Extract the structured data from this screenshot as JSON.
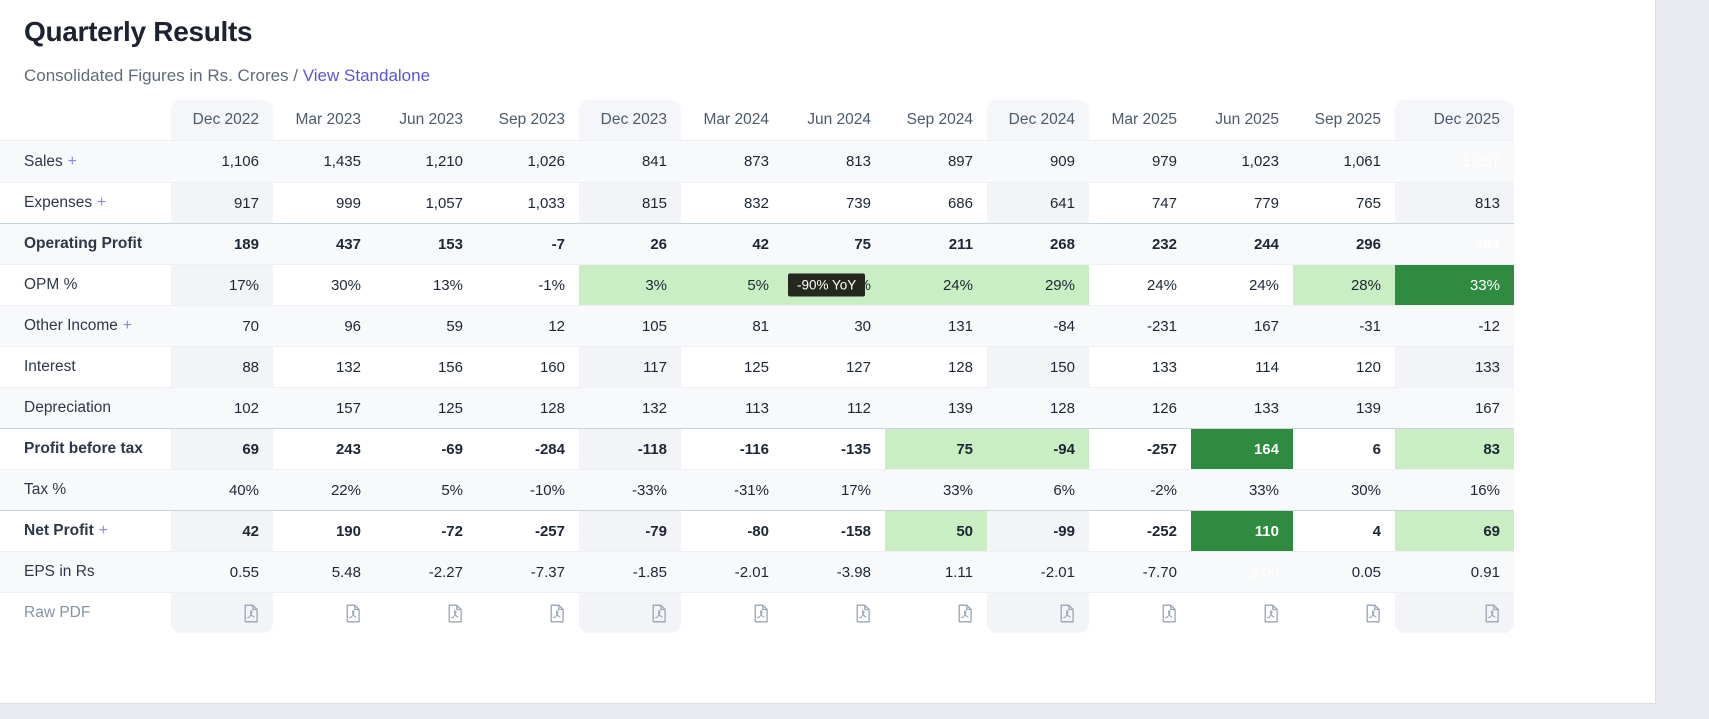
{
  "header": {
    "title": "Quarterly Results",
    "subtitle": "Consolidated Figures in Rs. Crores /",
    "link_label": "View Standalone"
  },
  "colors": {
    "highlight_light_green": "#c9eec3",
    "highlight_dark_green": "#2e8b3f",
    "dark_cell_text": "#ffffff",
    "link_purple": "#5b55d6",
    "expand_plus_purple": "#8b87e8",
    "tooltip_bg": "#24281f"
  },
  "tooltip": {
    "text": "-90% YoY",
    "row_index": 3,
    "col_index": 6
  },
  "table": {
    "expand_symbol": "+",
    "columns": [
      "Dec 2022",
      "Mar 2023",
      "Jun 2023",
      "Sep 2023",
      "Dec 2023",
      "Mar 2024",
      "Jun 2024",
      "Sep 2024",
      "Dec 2024",
      "Mar 2025",
      "Jun 2025",
      "Sep 2025",
      "Dec 2025"
    ],
    "striped_column_indices": [
      0,
      4,
      8,
      12
    ],
    "rows": [
      {
        "label": "Sales",
        "expandable": true,
        "bold": false,
        "values": [
          "1,106",
          "1,435",
          "1,210",
          "1,026",
          "841",
          "873",
          "813",
          "897",
          "909",
          "979",
          "1,023",
          "1,061",
          "1,207"
        ],
        "highlights": [
          null,
          null,
          null,
          null,
          null,
          null,
          null,
          null,
          "light",
          "light",
          "light",
          "light",
          "dark"
        ]
      },
      {
        "label": "Expenses",
        "expandable": true,
        "bold": false,
        "values": [
          "917",
          "999",
          "1,057",
          "1,033",
          "815",
          "832",
          "739",
          "686",
          "641",
          "747",
          "779",
          "765",
          "813"
        ],
        "highlights": [
          null,
          null,
          null,
          null,
          null,
          null,
          null,
          null,
          null,
          null,
          null,
          null,
          null
        ]
      },
      {
        "label": "Operating Profit",
        "bold": true,
        "values": [
          "189",
          "437",
          "153",
          "-7",
          "26",
          "42",
          "75",
          "211",
          "268",
          "232",
          "244",
          "296",
          "394"
        ],
        "highlights": [
          null,
          null,
          null,
          null,
          null,
          null,
          null,
          "light",
          "light",
          "light",
          "light",
          "light",
          "dark"
        ]
      },
      {
        "label": "OPM %",
        "bold": false,
        "values": [
          "17%",
          "30%",
          "13%",
          "-1%",
          "3%",
          "5%",
          "9%",
          "24%",
          "29%",
          "24%",
          "24%",
          "28%",
          "33%"
        ],
        "highlights": [
          null,
          null,
          null,
          null,
          "light",
          "light",
          "light",
          "light",
          "light",
          null,
          null,
          "light",
          "dark"
        ]
      },
      {
        "label": "Other Income",
        "expandable": true,
        "bold": false,
        "values": [
          "70",
          "96",
          "59",
          "12",
          "105",
          "81",
          "30",
          "131",
          "-84",
          "-231",
          "167",
          "-31",
          "-12"
        ],
        "highlights": [
          null,
          null,
          null,
          null,
          null,
          null,
          null,
          null,
          null,
          null,
          null,
          null,
          null
        ]
      },
      {
        "label": "Interest",
        "bold": false,
        "values": [
          "88",
          "132",
          "156",
          "160",
          "117",
          "125",
          "127",
          "128",
          "150",
          "133",
          "114",
          "120",
          "133"
        ],
        "highlights": [
          null,
          null,
          null,
          null,
          null,
          null,
          null,
          null,
          null,
          null,
          null,
          null,
          null
        ]
      },
      {
        "label": "Depreciation",
        "bold": false,
        "values": [
          "102",
          "157",
          "125",
          "128",
          "132",
          "113",
          "112",
          "139",
          "128",
          "126",
          "133",
          "139",
          "167"
        ],
        "highlights": [
          null,
          null,
          null,
          null,
          null,
          null,
          null,
          null,
          null,
          null,
          null,
          null,
          null
        ]
      },
      {
        "label": "Profit before tax",
        "bold": true,
        "values": [
          "69",
          "243",
          "-69",
          "-284",
          "-118",
          "-116",
          "-135",
          "75",
          "-94",
          "-257",
          "164",
          "6",
          "83"
        ],
        "highlights": [
          null,
          null,
          null,
          null,
          null,
          null,
          null,
          "light",
          "light",
          null,
          "dark",
          null,
          "light"
        ]
      },
      {
        "label": "Tax %",
        "bold": false,
        "values": [
          "40%",
          "22%",
          "5%",
          "-10%",
          "-33%",
          "-31%",
          "17%",
          "33%",
          "6%",
          "-2%",
          "33%",
          "30%",
          "16%"
        ],
        "highlights": [
          null,
          null,
          null,
          null,
          null,
          null,
          null,
          null,
          null,
          null,
          null,
          null,
          null
        ]
      },
      {
        "label": "Net Profit",
        "expandable": true,
        "bold": true,
        "values": [
          "42",
          "190",
          "-72",
          "-257",
          "-79",
          "-80",
          "-158",
          "50",
          "-99",
          "-252",
          "110",
          "4",
          "69"
        ],
        "highlights": [
          null,
          null,
          null,
          null,
          null,
          null,
          null,
          "light",
          null,
          null,
          "dark",
          null,
          "light"
        ]
      },
      {
        "label": "EPS in Rs",
        "bold": false,
        "values": [
          "0.55",
          "5.48",
          "-2.27",
          "-7.37",
          "-1.85",
          "-2.01",
          "-3.98",
          "1.11",
          "-2.01",
          "-7.70",
          "2.00",
          "0.05",
          "0.91"
        ],
        "highlights": [
          null,
          null,
          null,
          null,
          null,
          null,
          null,
          "light",
          null,
          null,
          "dark",
          null,
          "light"
        ]
      },
      {
        "label": "Raw PDF",
        "type": "pdf",
        "icon": "pdf-file-icon",
        "bold": false
      }
    ]
  }
}
